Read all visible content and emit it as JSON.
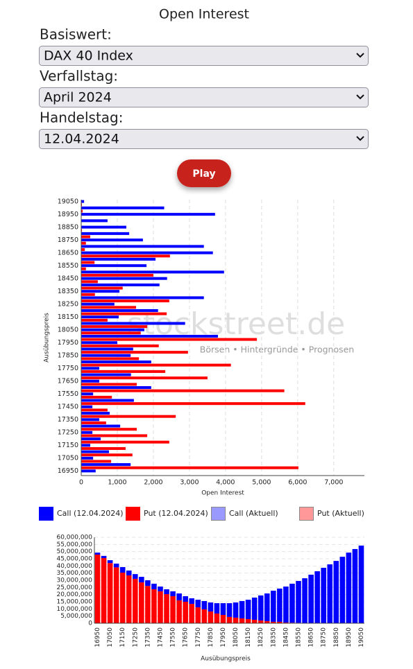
{
  "header": {
    "title": "Open Interest"
  },
  "form": {
    "fields": [
      {
        "label": "Basiswert:",
        "value": "DAX 40 Index"
      },
      {
        "label": "Verfallstag:",
        "value": "April 2024"
      },
      {
        "label": "Handelstag:",
        "value": "12.04.2024"
      }
    ],
    "button": "Play"
  },
  "watermark": {
    "brand": "stockstreet.de",
    "tagline": "Börsen • Hintergründe • Prognosen"
  },
  "chart_data": [
    {
      "type": "hbar",
      "y_label": "Ausübungspreis",
      "x_label": "Open Interest",
      "categories": [
        "19050",
        null,
        "18950",
        null,
        "18850",
        null,
        "18750",
        null,
        "18650",
        null,
        "18550",
        null,
        "18450",
        null,
        "18350",
        null,
        "18250",
        null,
        "18150",
        null,
        "18050",
        null,
        "17950",
        null,
        "17850",
        null,
        "17750",
        null,
        "17650",
        null,
        "17550",
        null,
        "17450",
        null,
        "17350",
        null,
        "17250",
        null,
        "17150",
        null,
        "17050",
        null,
        "16950"
      ],
      "series": [
        {
          "name": "Call (12.04.2024)",
          "color": "#0000ff",
          "values": [
            80,
            2300,
            3710,
            730,
            1250,
            1330,
            1710,
            3400,
            3650,
            2060,
            1810,
            3960,
            2380,
            2170,
            1060,
            3400,
            920,
            2130,
            1040,
            2880,
            1750,
            3790,
            1000,
            1440,
            1370,
            1940,
            500,
            1380,
            500,
            1940,
            330,
            1460,
            310,
            790,
            500,
            1080,
            310,
            540,
            250,
            770,
            330,
            1370,
            400
          ]
        },
        {
          "name": "Put (12.04.2024)",
          "color": "#ff0000",
          "values": [
            20,
            40,
            10,
            10,
            20,
            250,
            130,
            100,
            2460,
            370,
            130,
            2000,
            460,
            1150,
            380,
            2440,
            1520,
            2370,
            730,
            1830,
            1650,
            4870,
            2150,
            2960,
            1600,
            4150,
            2330,
            3500,
            1540,
            5630,
            850,
            6210,
            730,
            2620,
            690,
            1540,
            1830,
            2440,
            1230,
            1420,
            830,
            6020,
            0
          ]
        }
      ],
      "legend_extra": [
        {
          "name": "Call (Aktuell)",
          "color": "#9999ff"
        },
        {
          "name": "Put (Aktuell)",
          "color": "#ff9999"
        }
      ],
      "xlim": [
        0,
        7850
      ],
      "xticks": [
        0,
        {
          "value": 1000,
          "label": "1,000"
        },
        {
          "value": 2000,
          "label": "2,000"
        },
        {
          "value": 3000,
          "label": "3,000"
        },
        {
          "value": 4000,
          "label": "4,000"
        },
        {
          "value": 5000,
          "label": "5,000"
        },
        {
          "value": 6000,
          "label": "6,000"
        },
        {
          "value": 7000,
          "label": "7,000"
        }
      ],
      "grid": true
    },
    {
      "type": "stacked_bar",
      "x_label": "Ausübungspreis",
      "categories": [
        "16950",
        null,
        "17050",
        null,
        "17150",
        null,
        "17250",
        null,
        "17350",
        null,
        "17450",
        null,
        "17550",
        null,
        "17650",
        null,
        "17750",
        null,
        "17850",
        null,
        "17950",
        null,
        "18050",
        null,
        "18150",
        null,
        "18250",
        null,
        "18350",
        null,
        "18450",
        null,
        "18550",
        null,
        "18650",
        null,
        "18750",
        null,
        "18850",
        null,
        "18950",
        null,
        "19050"
      ],
      "series": [
        {
          "color": "#ff0000",
          "values": [
            47900000,
            45500000,
            42000000,
            39000000,
            35300000,
            33400000,
            31000000,
            28500000,
            26000000,
            23700000,
            22300000,
            20300000,
            18900000,
            16000000,
            15000000,
            13500000,
            11100000,
            9700000,
            8200000,
            6800000,
            5800000,
            4400000,
            3900000,
            3400000,
            2900000,
            2400000,
            1900000,
            1500000,
            1000000,
            1000000,
            500000,
            400000,
            300000,
            200000,
            200000,
            100000,
            100000,
            0,
            0,
            0,
            0,
            0,
            0
          ]
        },
        {
          "color": "#0000ff",
          "values": [
            1400000,
            1500000,
            2000000,
            2600000,
            3900000,
            3400000,
            3300000,
            3900000,
            4000000,
            3900000,
            3300000,
            3400000,
            3400000,
            4800000,
            3900000,
            3900000,
            5300000,
            5800000,
            6300000,
            7200000,
            8200000,
            9600000,
            10600000,
            12100000,
            13500000,
            15500000,
            17500000,
            19300000,
            21700000,
            23200000,
            25100000,
            27200000,
            29200000,
            31200000,
            33700000,
            36200000,
            38600000,
            41100000,
            43500000,
            46400000,
            49300000,
            51800000,
            54200000
          ]
        }
      ],
      "ylim": [
        0,
        60000000
      ],
      "yticks": [
        0,
        {
          "value": 5000000,
          "label": "5,000,000"
        },
        {
          "value": 10000000,
          "label": "10,000,000"
        },
        {
          "value": 15000000,
          "label": "15,000,000"
        },
        {
          "value": 20000000,
          "label": "20,000,000"
        },
        {
          "value": 25000000,
          "label": "25,000,000"
        },
        {
          "value": 30000000,
          "label": "30,000,000"
        },
        {
          "value": 35000000,
          "label": "35,000,000"
        },
        {
          "value": 40000000,
          "label": "40,000,000"
        },
        {
          "value": 45000000,
          "label": "45,000,000"
        },
        {
          "value": 50000000,
          "label": "50,000,000"
        },
        {
          "value": 55000000,
          "label": "55,000,000"
        },
        {
          "value": 60000000,
          "label": "60,000,000"
        }
      ],
      "grid": true
    }
  ]
}
